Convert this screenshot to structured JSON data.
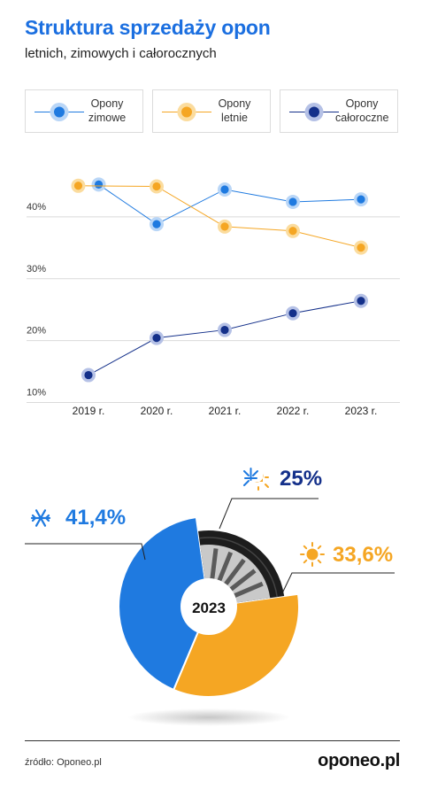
{
  "title": "Struktura sprzedaży opon",
  "subtitle": "letnich, zimowych i całorocznych",
  "legend": [
    {
      "line1": "Opony",
      "line2": "zimowe",
      "color": "#1f7ae0",
      "halo": "#b9d6f7"
    },
    {
      "line1": "Opony",
      "line2": "letnie",
      "color": "#f5a623",
      "halo": "#fbdc9e"
    },
    {
      "line1": "Opony",
      "line2": "całoroczne",
      "color": "#14308a",
      "halo": "#b5c1e6"
    }
  ],
  "chart_data": [
    {
      "type": "line",
      "categories": [
        "2019 r.",
        "2020 r.",
        "2021 r.",
        "2022 r.",
        "2023 r."
      ],
      "y_ticks": [
        "40%",
        "30%",
        "20%",
        "10%"
      ],
      "y_tick_values": [
        40,
        30,
        20,
        10
      ],
      "ylim": [
        8.5,
        45
      ],
      "grid": true,
      "series": [
        {
          "name": "Opony zimowe",
          "color": "#1f7ae0",
          "halo": "#b9d6f7",
          "values": [
            null,
            37.4,
            43.0,
            41.0,
            41.4
          ],
          "start_x": 0.15,
          "start_value": 43.8
        },
        {
          "name": "Opony letnie",
          "color": "#f5a623",
          "halo": "#fbdc9e",
          "values": [
            null,
            43.5,
            37.0,
            36.3,
            33.6
          ],
          "start_x": -0.15,
          "start_value": 43.6
        },
        {
          "name": "Opony całoroczne",
          "color": "#14308a",
          "halo": "#b5c1e6",
          "values": [
            13.0,
            19.0,
            20.3,
            23.0,
            25.0
          ]
        }
      ]
    },
    {
      "type": "pie",
      "center_label": "2023",
      "slices": [
        {
          "label": "41,4%",
          "value": 41.4,
          "color": "#1f7ae0",
          "icon": "snowflake-icon"
        },
        {
          "label": "25%",
          "value": 25.0,
          "color": "#14308a",
          "icon": "snow-sun-icon"
        },
        {
          "label": "33,6%",
          "value": 33.6,
          "color": "#f5a623",
          "icon": "sun-icon"
        }
      ]
    }
  ],
  "source": "źródło: Oponeo.pl",
  "logo": "oponeo.pl"
}
